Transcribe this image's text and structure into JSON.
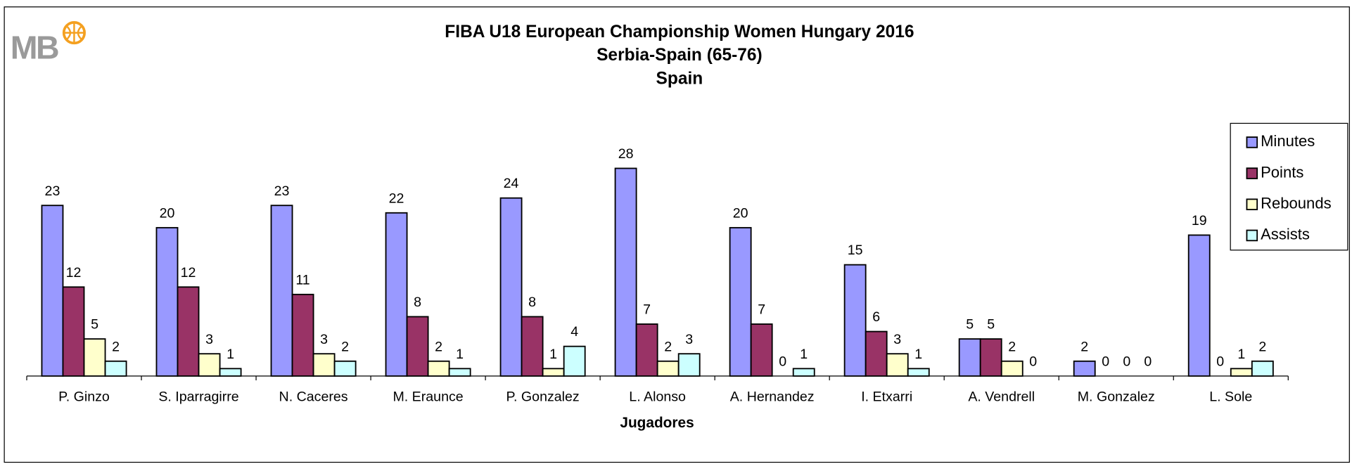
{
  "logo": "MB",
  "chart_data": {
    "type": "bar",
    "title": [
      "FIBA U18 European Championship Women Hungary 2016",
      "Serbia-Spain (65-76)",
      "Spain"
    ],
    "xlabel": "Jugadores",
    "categories": [
      "P. Ginzo",
      "S. Iparragirre",
      "N. Caceres",
      "M. Eraunce",
      "P. Gonzalez",
      "L. Alonso",
      "A. Hernandez",
      "I. Etxarri",
      "A. Vendrell",
      "M. Gonzalez",
      "L. Sole"
    ],
    "series": [
      {
        "name": "Minutes",
        "color": "#9999ff",
        "values": [
          23,
          20,
          23,
          22,
          24,
          28,
          20,
          15,
          5,
          2,
          19
        ]
      },
      {
        "name": "Points",
        "color": "#993366",
        "values": [
          12,
          12,
          11,
          8,
          8,
          7,
          7,
          6,
          5,
          0,
          0
        ]
      },
      {
        "name": "Rebounds",
        "color": "#ffffcc",
        "values": [
          5,
          3,
          3,
          2,
          1,
          2,
          0,
          3,
          2,
          0,
          1
        ]
      },
      {
        "name": "Assists",
        "color": "#ccffff",
        "values": [
          2,
          1,
          2,
          1,
          4,
          3,
          1,
          1,
          0,
          0,
          2
        ]
      }
    ],
    "ylim": [
      0,
      30
    ],
    "legend": "right"
  }
}
